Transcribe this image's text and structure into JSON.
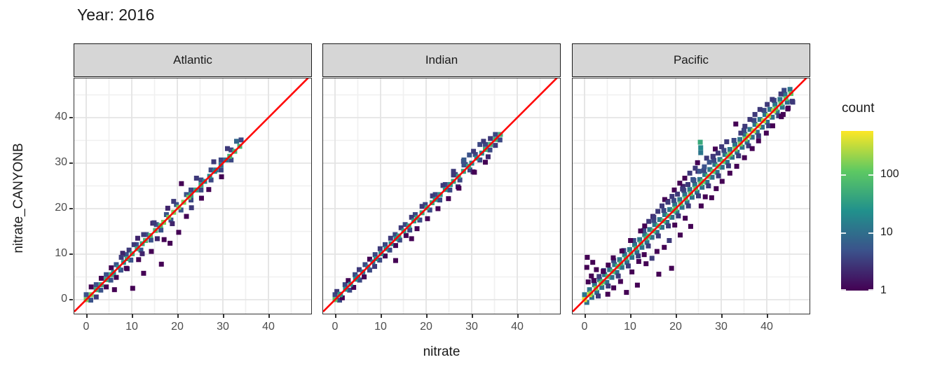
{
  "chart_data": {
    "type": "heatmap",
    "subtype": "bin2d_faceted",
    "title": "Year: 2016",
    "xlabel": "nitrate",
    "ylabel": "nitrate_CANYONB",
    "x_ticks": [
      0,
      10,
      20,
      30,
      40
    ],
    "y_ticks": [
      0,
      10,
      20,
      30,
      40
    ],
    "minor_gridlines": [
      5,
      15,
      25,
      35,
      45
    ],
    "xlim": [
      -2.6,
      49.4
    ],
    "ylim": [
      -3.1,
      48.6
    ],
    "bin_size": 1.1,
    "grid": true,
    "identity_line": {
      "slope": 1,
      "intercept": 0,
      "color": "#ff0000"
    },
    "legend": {
      "title": "count",
      "scale": "log10",
      "position": "right",
      "ticks": [
        {
          "label": "100",
          "value": 100
        },
        {
          "label": "10",
          "value": 10
        },
        {
          "label": "1",
          "value": 1
        }
      ],
      "max_count": 560,
      "palette": [
        "#440154",
        "#3b528b",
        "#21918c",
        "#5ec962",
        "#fde725"
      ]
    },
    "facets": [
      {
        "label": "Atlantic",
        "data_range": [
          0,
          34.5
        ],
        "diagonal_segments": [
          [
            0,
            2.2,
            150
          ],
          [
            2.2,
            6,
            50
          ],
          [
            6,
            9,
            25
          ],
          [
            9,
            13,
            45
          ],
          [
            13,
            17,
            70
          ],
          [
            17,
            23,
            150
          ],
          [
            23,
            26,
            40
          ],
          [
            26,
            28.5,
            20
          ],
          [
            28.5,
            31.5,
            12
          ],
          [
            31.5,
            34.3,
            60
          ]
        ],
        "bands": [
          [
            1.1,
            0,
            23,
            2.2,
            5
          ],
          [
            -1.1,
            1,
            22,
            2.2,
            5
          ],
          [
            1.1,
            23,
            34,
            2.2,
            4
          ],
          [
            -1.1,
            23,
            33,
            2.2,
            4
          ],
          [
            2.2,
            8,
            20,
            3.3,
            2
          ],
          [
            -2.2,
            9,
            21,
            3.3,
            2
          ]
        ],
        "extra_bins": [
          [
            1.1,
            2.8,
            1
          ],
          [
            2.2,
            0.6,
            3
          ],
          [
            3.3,
            4.7,
            1
          ],
          [
            4.4,
            2.8,
            1
          ],
          [
            5.5,
            7,
            1
          ],
          [
            6.2,
            2.2,
            1
          ],
          [
            6.6,
            4.9,
            1
          ],
          [
            7.7,
            9.3,
            3
          ],
          [
            8.8,
            6.9,
            1
          ],
          [
            9.4,
            10.9,
            3
          ],
          [
            10.2,
            2.5,
            1
          ],
          [
            10.5,
            12.1,
            3
          ],
          [
            11.5,
            8.8,
            1
          ],
          [
            12.6,
            14.3,
            3
          ],
          [
            12.6,
            5.8,
            1
          ],
          [
            14.3,
            10.6,
            1
          ],
          [
            14.9,
            16.9,
            3
          ],
          [
            16.5,
            7.8,
            1
          ],
          [
            17.1,
            13.2,
            1
          ],
          [
            18.4,
            12.4,
            1
          ],
          [
            19.2,
            21.6,
            3
          ],
          [
            20.3,
            14.8,
            1
          ],
          [
            20.9,
            25.5,
            1
          ],
          [
            22,
            18.3,
            1
          ],
          [
            23.1,
            20.2,
            3
          ],
          [
            24.2,
            26.7,
            3
          ],
          [
            25.3,
            22.3,
            1
          ],
          [
            26.9,
            24.2,
            1
          ],
          [
            28,
            30.3,
            3
          ],
          [
            29.7,
            27,
            1
          ],
          [
            31,
            33.2,
            3
          ],
          [
            33,
            34.8,
            8
          ]
        ]
      },
      {
        "label": "Indian",
        "data_range": [
          0,
          37
        ],
        "diagonal_segments": [
          [
            0,
            1.2,
            100
          ],
          [
            1.2,
            5,
            25
          ],
          [
            5,
            9,
            12
          ],
          [
            9,
            14,
            25
          ],
          [
            14,
            18,
            35
          ],
          [
            18,
            22,
            45
          ],
          [
            22,
            26,
            28
          ],
          [
            26,
            30,
            40
          ],
          [
            30,
            33,
            22
          ],
          [
            33,
            37,
            55
          ]
        ],
        "bands": [
          [
            1.1,
            0,
            36,
            2.2,
            4
          ],
          [
            -1.1,
            1,
            36.5,
            2.2,
            4
          ],
          [
            2.2,
            26,
            34,
            2.2,
            3
          ],
          [
            -2.2,
            27,
            35,
            3.3,
            2
          ]
        ],
        "extra_bins": [
          [
            0.4,
            1.8,
            3
          ],
          [
            1.6,
            0.4,
            1
          ],
          [
            2.9,
            4.2,
            1
          ],
          [
            4.1,
            2.7,
            1
          ],
          [
            5.3,
            6.6,
            3
          ],
          [
            6.4,
            5,
            1
          ],
          [
            7.6,
            8.9,
            1
          ],
          [
            8.7,
            7.3,
            3
          ],
          [
            9.9,
            11.2,
            3
          ],
          [
            11,
            9.6,
            1
          ],
          [
            12.2,
            13.5,
            3
          ],
          [
            13.3,
            8.6,
            1
          ],
          [
            13.3,
            11.9,
            1
          ],
          [
            14.5,
            15.8,
            3
          ],
          [
            15.6,
            14.1,
            1
          ],
          [
            16.8,
            13.4,
            1
          ],
          [
            16.8,
            18.1,
            3
          ],
          [
            18,
            15.6,
            1
          ],
          [
            19.1,
            20.5,
            3
          ],
          [
            20.3,
            17.8,
            1
          ],
          [
            21.4,
            22.8,
            3
          ],
          [
            22.6,
            20,
            1
          ],
          [
            23.7,
            25.1,
            3
          ],
          [
            24.9,
            22.2,
            1
          ],
          [
            26,
            27.4,
            3
          ],
          [
            27.2,
            24.5,
            1
          ],
          [
            28.3,
            30.7,
            6
          ],
          [
            28.3,
            29.6,
            5
          ],
          [
            29.5,
            31.8,
            5
          ],
          [
            30.6,
            28,
            1
          ],
          [
            31.8,
            34.1,
            4
          ],
          [
            33,
            30.2,
            1
          ],
          [
            34.1,
            35.4,
            3
          ],
          [
            35.2,
            33.9,
            3
          ]
        ]
      },
      {
        "label": "Pacific",
        "data_range": [
          0,
          46
        ],
        "diagonal_segments": [
          [
            0,
            1.4,
            420
          ],
          [
            1.4,
            4,
            160
          ],
          [
            4,
            8,
            80
          ],
          [
            8,
            14,
            55
          ],
          [
            14,
            20,
            70
          ],
          [
            20,
            26,
            90
          ],
          [
            26,
            32,
            110
          ],
          [
            32,
            36,
            150
          ],
          [
            36,
            42,
            260
          ],
          [
            42,
            46,
            110
          ]
        ],
        "bands": [
          [
            1.1,
            0,
            46,
            1.1,
            12
          ],
          [
            -1.1,
            0.5,
            45.5,
            1.1,
            10
          ],
          [
            2.2,
            2,
            44,
            2.2,
            4
          ],
          [
            -2.2,
            3,
            43,
            2.2,
            3
          ],
          [
            3.3,
            15,
            30,
            3.3,
            2
          ]
        ],
        "extra_bins": [
          [
            5.1,
            1.2,
            1
          ],
          [
            6.4,
            2.6,
            1
          ],
          [
            7.9,
            4,
            1
          ],
          [
            9.2,
            1.6,
            1
          ],
          [
            10.4,
            6.1,
            1
          ],
          [
            11.6,
            3.2,
            1
          ],
          [
            11.9,
            8.4,
            1
          ],
          [
            13.1,
            9.9,
            1
          ],
          [
            13.5,
            7.9,
            1
          ],
          [
            14.8,
            9.1,
            3
          ],
          [
            15.9,
            10.6,
            1
          ],
          [
            16.3,
            5.6,
            1
          ],
          [
            17.5,
            11.5,
            1
          ],
          [
            18.6,
            13,
            3
          ],
          [
            19.1,
            6.9,
            1
          ],
          [
            19.8,
            16.4,
            1
          ],
          [
            21,
            14.2,
            1
          ],
          [
            22.1,
            17.9,
            1
          ],
          [
            23.3,
            16.1,
            1
          ],
          [
            25.6,
            20.6,
            1
          ],
          [
            27.9,
            22.4,
            1
          ],
          [
            30.2,
            26,
            1
          ],
          [
            31.9,
            27.8,
            1
          ],
          [
            33.4,
            29.3,
            1
          ],
          [
            35.1,
            31.2,
            1
          ],
          [
            36.8,
            33.2,
            1
          ],
          [
            38.2,
            34.9,
            1
          ],
          [
            39.9,
            36.6,
            1
          ],
          [
            41.3,
            38.2,
            1
          ],
          [
            43.2,
            40.2,
            1
          ],
          [
            44.6,
            41.9,
            1
          ],
          [
            45.7,
            43.4,
            3
          ],
          [
            15.2,
            18.1,
            3
          ],
          [
            16.1,
            19.4,
            3
          ],
          [
            17,
            20.6,
            3
          ],
          [
            17.6,
            22,
            1
          ],
          [
            18.3,
            21.4,
            3
          ],
          [
            19.2,
            22.7,
            3
          ],
          [
            19.7,
            24.1,
            1
          ],
          [
            20.4,
            23.2,
            3
          ],
          [
            20.9,
            25.6,
            1
          ],
          [
            21.5,
            24.3,
            3
          ],
          [
            22,
            26.7,
            1
          ],
          [
            22.7,
            25.3,
            3
          ],
          [
            23.1,
            27.8,
            3
          ],
          [
            23.8,
            26.4,
            5
          ],
          [
            24.3,
            28.9,
            3
          ],
          [
            24.8,
            30.1,
            1
          ],
          [
            25.2,
            28.2,
            5
          ],
          [
            25.5,
            32.3,
            12
          ],
          [
            25.5,
            33.4,
            20
          ],
          [
            25.4,
            34.6,
            45
          ],
          [
            26.3,
            29.2,
            5
          ],
          [
            26.8,
            31.1,
            3
          ],
          [
            27.4,
            30.2,
            5
          ],
          [
            28.2,
            31.4,
            3
          ],
          [
            28.7,
            33.1,
            1
          ],
          [
            29.3,
            32.2,
            3
          ],
          [
            30.1,
            33.6,
            3
          ],
          [
            31.2,
            34.7,
            3
          ],
          [
            12.3,
            15.1,
            1
          ],
          [
            13.2,
            16.2,
            1
          ],
          [
            14.1,
            17.2,
            3
          ],
          [
            10.1,
            13,
            1
          ],
          [
            8.2,
            10.7,
            1
          ],
          [
            6.3,
            9.2,
            1
          ],
          [
            5.2,
            7.6,
            1
          ],
          [
            4.1,
            6.2,
            1
          ],
          [
            3.2,
            5.1,
            3
          ],
          [
            2.1,
            4.2,
            1
          ],
          [
            2.6,
            6.6,
            1
          ],
          [
            1.5,
            5.2,
            1
          ],
          [
            0.8,
            3.9,
            1
          ],
          [
            0.5,
            7.1,
            1
          ],
          [
            0.6,
            9.3,
            1
          ],
          [
            1.8,
            8.2,
            1
          ],
          [
            33.2,
            38.6,
            1
          ],
          [
            34.3,
            36.6,
            3
          ],
          [
            35.2,
            38.1,
            3
          ],
          [
            36.3,
            39.6,
            3
          ],
          [
            37.4,
            40.7,
            3
          ],
          [
            38.5,
            41.8,
            3
          ],
          [
            40.1,
            42.9,
            3
          ],
          [
            41.2,
            44,
            3
          ],
          [
            43.1,
            45.2,
            3
          ],
          [
            45.6,
            43.6,
            3
          ],
          [
            44.7,
            42.1,
            1
          ],
          [
            43.6,
            40.7,
            1
          ],
          [
            26.5,
            22.6,
            1
          ],
          [
            28.9,
            24.4,
            1
          ]
        ]
      }
    ]
  },
  "colors": {
    "strip_bg": "#d6d6d6",
    "strip_border": "#1a1a1a",
    "panel_border": "#333333",
    "grid_major": "#e4e4e4",
    "grid_minor": "#f0f0f0",
    "axis_text": "#4d4d4d",
    "tick_mark": "#333333",
    "identity_line": "#ff0000",
    "background": "#ffffff"
  }
}
